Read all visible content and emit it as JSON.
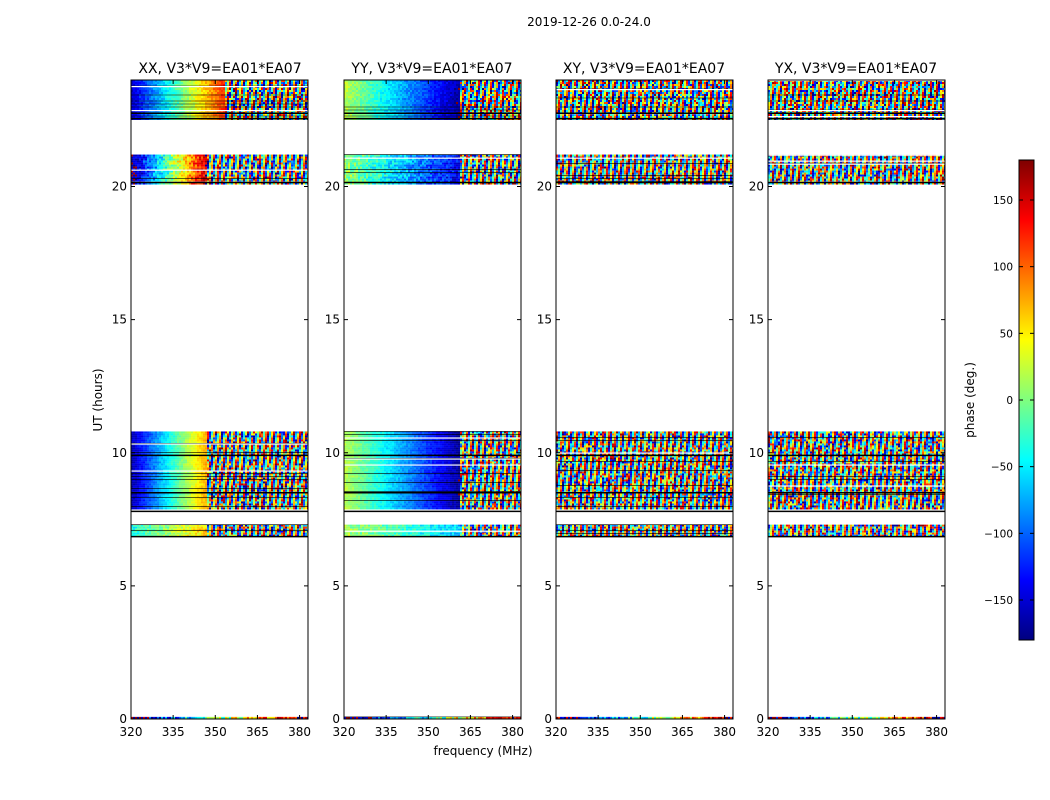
{
  "chart_data": {
    "type": "heatmap",
    "suptitle": "2019-12-26 0.0-24.0",
    "xlabel": "frequency (MHz)",
    "ylabel": "UT (hours)",
    "xlim": [
      320,
      383
    ],
    "ylim": [
      0,
      24
    ],
    "xticks": [
      320,
      335,
      350,
      365,
      380
    ],
    "xtick_labels": [
      "320",
      "335",
      "350",
      "365",
      "380"
    ],
    "yticks": [
      0,
      5,
      10,
      15,
      20
    ],
    "ytick_labels": [
      "0",
      "5",
      "10",
      "15",
      "20"
    ],
    "colorbar": {
      "label": "phase (deg.)",
      "range": [
        -180,
        180
      ],
      "ticks": [
        150,
        100,
        50,
        0,
        -50,
        -100,
        -150
      ],
      "tick_labels": [
        "150",
        "100",
        "50",
        "0",
        "−50",
        "−100",
        "−150"
      ],
      "colormap": [
        "#00007f",
        "#0000ff",
        "#007fff",
        "#00ffff",
        "#7fff7f",
        "#ffff00",
        "#ff7f00",
        "#ff0000",
        "#7f0000"
      ]
    },
    "flag_line_ut": [
      22.55,
      22.75,
      20.15,
      7.8,
      6.85,
      9.9,
      8.5
    ],
    "panels": [
      {
        "title": "XX, V3*V9=EA01*EA07",
        "bands": [
          {
            "ut": [
              22.5,
              24.0
            ],
            "seg1_end_mhz": 353,
            "phase_start": -150,
            "phase_end": 120,
            "noise": 0.25
          },
          {
            "ut": [
              20.1,
              21.2
            ],
            "seg1_end_mhz": 347,
            "phase_start": -170,
            "phase_end": 160,
            "noise": 0.6
          },
          {
            "ut": [
              7.9,
              10.8
            ],
            "seg1_end_mhz": 347,
            "phase_start": -160,
            "phase_end": 80,
            "noise": 0.2
          },
          {
            "ut": [
              6.9,
              7.3
            ],
            "seg1_end_mhz": 347,
            "phase_start": -40,
            "phase_end": 60,
            "noise": 0.4
          },
          {
            "ut": [
              0.0,
              0.08
            ],
            "seg1_end_mhz": 383,
            "phase_start": -180,
            "phase_end": 180,
            "noise": 1.0
          }
        ]
      },
      {
        "title": "YY, V3*V9=EA01*EA07",
        "bands": [
          {
            "ut": [
              22.5,
              24.0
            ],
            "seg1_end_mhz": 361,
            "phase_start": 20,
            "phase_end": -170,
            "noise": 0.25
          },
          {
            "ut": [
              20.1,
              21.2
            ],
            "seg1_end_mhz": 361,
            "phase_start": 10,
            "phase_end": -140,
            "noise": 0.5
          },
          {
            "ut": [
              7.9,
              10.8
            ],
            "seg1_end_mhz": 361,
            "phase_start": 20,
            "phase_end": -170,
            "noise": 0.2
          },
          {
            "ut": [
              6.9,
              7.3
            ],
            "seg1_end_mhz": 361,
            "phase_start": 20,
            "phase_end": -60,
            "noise": 0.4
          },
          {
            "ut": [
              0.0,
              0.08
            ],
            "seg1_end_mhz": 383,
            "phase_start": -180,
            "phase_end": 180,
            "noise": 1.0
          }
        ]
      },
      {
        "title": "XY, V3*V9=EA01*EA07",
        "bands": [
          {
            "ut": [
              22.5,
              24.0
            ],
            "seg1_end_mhz": 320,
            "phase_start": 0,
            "phase_end": 0,
            "noise": 1.0
          },
          {
            "ut": [
              20.1,
              21.2
            ],
            "seg1_end_mhz": 320,
            "phase_start": 0,
            "phase_end": 0,
            "noise": 1.0
          },
          {
            "ut": [
              7.9,
              10.8
            ],
            "seg1_end_mhz": 320,
            "phase_start": 0,
            "phase_end": 0,
            "noise": 1.0
          },
          {
            "ut": [
              6.9,
              7.3
            ],
            "seg1_end_mhz": 320,
            "phase_start": 0,
            "phase_end": 0,
            "noise": 1.0
          },
          {
            "ut": [
              0.0,
              0.08
            ],
            "seg1_end_mhz": 383,
            "phase_start": -180,
            "phase_end": 180,
            "noise": 1.0
          }
        ]
      },
      {
        "title": "YX, V3*V9=EA01*EA07",
        "bands": [
          {
            "ut": [
              22.5,
              24.0
            ],
            "seg1_end_mhz": 320,
            "phase_start": 0,
            "phase_end": 0,
            "noise": 1.0
          },
          {
            "ut": [
              20.1,
              21.2
            ],
            "seg1_end_mhz": 320,
            "phase_start": 0,
            "phase_end": 0,
            "noise": 1.0
          },
          {
            "ut": [
              7.9,
              10.8
            ],
            "seg1_end_mhz": 320,
            "phase_start": 0,
            "phase_end": 0,
            "noise": 1.0
          },
          {
            "ut": [
              6.9,
              7.3
            ],
            "seg1_end_mhz": 320,
            "phase_start": 0,
            "phase_end": 0,
            "noise": 1.0
          },
          {
            "ut": [
              0.0,
              0.08
            ],
            "seg1_end_mhz": 383,
            "phase_start": -180,
            "phase_end": 180,
            "noise": 1.0
          }
        ]
      }
    ]
  }
}
